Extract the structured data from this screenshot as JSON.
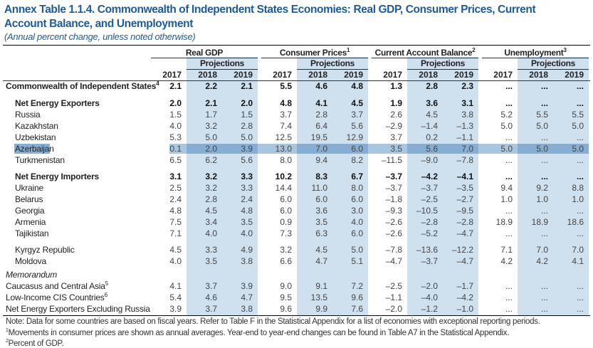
{
  "title": "Annex Table 1.1.4. Commonwealth of Independent States Economies: Real GDP, Consumer Prices, Current Account Balance, and Unemployment",
  "subtitle": "(Annual percent change, unless noted otherwise)",
  "groups": [
    {
      "label": "Real GDP",
      "sup": ""
    },
    {
      "label": "Consumer Prices",
      "sup": "1"
    },
    {
      "label": "Current Account Balance",
      "sup": "2"
    },
    {
      "label": "Unemployment",
      "sup": "3"
    }
  ],
  "projections_label": "Projections",
  "years": [
    "2017",
    "2018",
    "2019"
  ],
  "highlight_colors": {
    "projection_shade": "#cfe0ef",
    "selected_row": "#86aed2"
  },
  "rows": [
    {
      "label": "Commonwealth of Independent States",
      "sup": "4",
      "style": "bold",
      "values": [
        "2.1",
        "2.2",
        "2.1",
        "5.5",
        "4.6",
        "4.8",
        "1.3",
        "2.8",
        "2.3",
        "...",
        "...",
        "..."
      ]
    },
    {
      "label": "Net Energy Exporters",
      "style": "bold indent",
      "values": [
        "2.0",
        "2.1",
        "2.0",
        "4.8",
        "4.1",
        "4.5",
        "1.9",
        "3.6",
        "3.1",
        "...",
        "...",
        "..."
      ]
    },
    {
      "label": "Russia",
      "style": "indent",
      "values": [
        "1.5",
        "1.7",
        "1.5",
        "3.7",
        "2.8",
        "3.7",
        "2.6",
        "4.5",
        "3.8",
        "5.2",
        "5.5",
        "5.5"
      ]
    },
    {
      "label": "Kazakhstan",
      "style": "indent",
      "values": [
        "4.0",
        "3.2",
        "2.8",
        "7.4",
        "6.4",
        "5.6",
        "–2.9",
        "–1.4",
        "–1.3",
        "5.0",
        "5.0",
        "5.0"
      ]
    },
    {
      "label": "Uzbekistan",
      "style": "indent",
      "values": [
        "5.3",
        "5.0",
        "5.0",
        "12.5",
        "19.5",
        "12.9",
        "3.7",
        "0.2",
        "–1.1",
        "...",
        "...",
        "..."
      ]
    },
    {
      "label": "Azerbaijan",
      "style": "indent",
      "selected": true,
      "values": [
        "0.1",
        "2.0",
        "3.9",
        "13.0",
        "7.0",
        "6.0",
        "3.5",
        "5.6",
        "7.0",
        "5.0",
        "5.0",
        "5.0"
      ]
    },
    {
      "label": "Turkmenistan",
      "style": "indent",
      "values": [
        "6.5",
        "6.2",
        "5.6",
        "8.0",
        "9.4",
        "8.2",
        "–11.5",
        "–9.0",
        "–7.8",
        "...",
        "...",
        "..."
      ]
    },
    {
      "label": "Net Energy Importers",
      "style": "bold indent",
      "values": [
        "3.1",
        "3.2",
        "3.3",
        "10.2",
        "8.3",
        "6.7",
        "–3.7",
        "–4.2",
        "–4.1",
        "...",
        "...",
        "..."
      ]
    },
    {
      "label": "Ukraine",
      "style": "indent",
      "values": [
        "2.5",
        "3.2",
        "3.3",
        "14.4",
        "11.0",
        "8.0",
        "–3.7",
        "–3.7",
        "–3.5",
        "9.4",
        "9.2",
        "8.8"
      ]
    },
    {
      "label": "Belarus",
      "style": "indent",
      "values": [
        "2.4",
        "2.8",
        "2.4",
        "6.0",
        "6.0",
        "6.0",
        "–1.8",
        "–2.5",
        "–2.7",
        "1.0",
        "1.0",
        "1.0"
      ]
    },
    {
      "label": "Georgia",
      "style": "indent",
      "values": [
        "4.8",
        "4.5",
        "4.8",
        "6.0",
        "3.6",
        "3.0",
        "–9.3",
        "–10.5",
        "–9.5",
        "...",
        "...",
        "..."
      ]
    },
    {
      "label": "Armenia",
      "style": "indent",
      "values": [
        "7.5",
        "3.4",
        "3.5",
        "0.9",
        "3.5",
        "4.0",
        "–2.6",
        "–2.8",
        "–2.8",
        "18.9",
        "18.9",
        "18.6"
      ]
    },
    {
      "label": "Tajikistan",
      "style": "indent",
      "values": [
        "7.1",
        "4.0",
        "4.0",
        "7.3",
        "6.3",
        "6.0",
        "–2.6",
        "–5.2",
        "–4.7",
        "...",
        "...",
        "..."
      ]
    },
    {
      "label": "Kyrgyz Republic",
      "style": "indent",
      "values": [
        "4.5",
        "3.3",
        "4.9",
        "3.2",
        "4.5",
        "5.0",
        "–7.8",
        "–13.6",
        "–12.2",
        "7.1",
        "7.0",
        "7.0"
      ]
    },
    {
      "label": "Moldova",
      "style": "indent",
      "values": [
        "4.0",
        "3.5",
        "3.8",
        "6.6",
        "4.7",
        "5.1",
        "–4.7",
        "–3.7",
        "–4.7",
        "4.2",
        "4.2",
        "4.1"
      ]
    },
    {
      "label": "Memorandum",
      "style": "italic",
      "values": []
    },
    {
      "label": "Caucasus and Central Asia",
      "sup": "5",
      "style": "",
      "values": [
        "4.1",
        "3.7",
        "3.9",
        "9.0",
        "9.1",
        "7.2",
        "–2.5",
        "–2.0",
        "–1.7",
        "...",
        "...",
        "..."
      ]
    },
    {
      "label": "Low-Income CIS Countries",
      "sup": "6",
      "style": "",
      "values": [
        "5.4",
        "4.6",
        "4.7",
        "9.5",
        "13.5",
        "9.6",
        "–1.1",
        "–4.0",
        "–4.2",
        "...",
        "...",
        "..."
      ]
    },
    {
      "label": "Net Energy Exporters Excluding Russia",
      "style": "",
      "values": [
        "3.9",
        "3.7",
        "3.8",
        "9.6",
        "9.9",
        "7.6",
        "–2.0",
        "–1.2",
        "–1.0",
        "...",
        "...",
        "..."
      ]
    }
  ],
  "notes": [
    {
      "sup": "",
      "text": "Note: Data for some countries are based on fiscal years. Refer to Table F in the Statistical Appendix for a list of economies with exceptional reporting periods."
    },
    {
      "sup": "1",
      "text": "Movements in consumer prices are shown as annual averages. Year-end to year-end changes can be found in Table A7 in the Statistical Appendix."
    },
    {
      "sup": "2",
      "text": "Percent of GDP."
    }
  ]
}
